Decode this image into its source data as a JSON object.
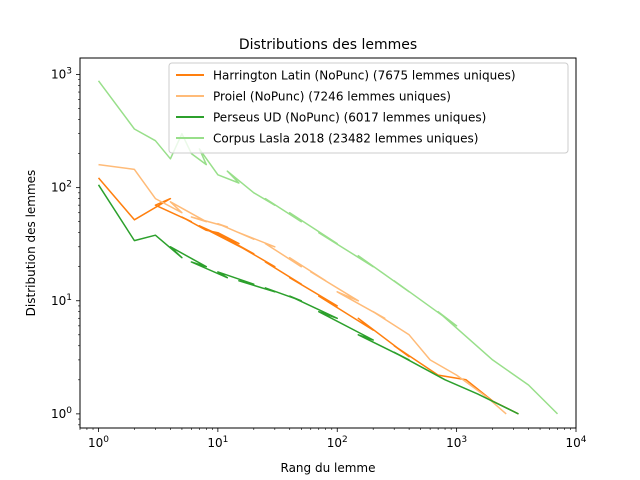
{
  "chart_data": {
    "type": "line",
    "title": "Distributions des lemmes",
    "xlabel": "Rang du lemme",
    "ylabel": "Distribution des lemmes",
    "xscale": "log",
    "yscale": "log",
    "xlim": [
      0.7,
      10000
    ],
    "ylim": [
      0.75,
      1400
    ],
    "x_ticks": [
      {
        "value": 1,
        "base": "10",
        "exp": "0"
      },
      {
        "value": 10,
        "base": "10",
        "exp": "1"
      },
      {
        "value": 100,
        "base": "10",
        "exp": "2"
      },
      {
        "value": 1000,
        "base": "10",
        "exp": "3"
      },
      {
        "value": 10000,
        "base": "10",
        "exp": "4"
      }
    ],
    "y_ticks": [
      {
        "value": 1,
        "base": "10",
        "exp": "0"
      },
      {
        "value": 10,
        "base": "10",
        "exp": "1"
      },
      {
        "value": 100,
        "base": "10",
        "exp": "2"
      },
      {
        "value": 1000,
        "base": "10",
        "exp": "3"
      }
    ],
    "grid": false,
    "legend_position": "top-right",
    "series": [
      {
        "name": "Harrington Latin (NoPunc) (7675 lemmes uniques)",
        "color": "#ff7f0e",
        "points": [
          [
            1,
            122
          ],
          [
            2,
            52
          ],
          [
            4,
            80
          ],
          [
            3,
            70
          ],
          [
            6,
            50
          ],
          [
            5,
            55
          ],
          [
            8,
            42
          ],
          [
            10,
            40
          ],
          [
            15,
            32
          ],
          [
            7,
            46
          ],
          [
            20,
            26
          ],
          [
            12,
            35
          ],
          [
            30,
            20
          ],
          [
            25,
            22
          ],
          [
            50,
            14
          ],
          [
            40,
            16
          ],
          [
            100,
            9
          ],
          [
            70,
            11
          ],
          [
            200,
            5.5
          ],
          [
            150,
            7
          ],
          [
            400,
            3.2
          ],
          [
            300,
            4
          ],
          [
            700,
            2.2
          ],
          [
            1200,
            2
          ],
          [
            2000,
            1.3
          ],
          [
            3300,
            1
          ]
        ]
      },
      {
        "name": "Proiel (NoPunc) (7246 lemmes uniques)",
        "color": "#ffbb78",
        "points": [
          [
            1,
            160
          ],
          [
            2,
            145
          ],
          [
            3,
            80
          ],
          [
            5,
            60
          ],
          [
            4,
            75
          ],
          [
            8,
            50
          ],
          [
            6,
            55
          ],
          [
            12,
            45
          ],
          [
            10,
            48
          ],
          [
            20,
            35
          ],
          [
            15,
            40
          ],
          [
            30,
            30
          ],
          [
            25,
            32
          ],
          [
            50,
            20
          ],
          [
            40,
            24
          ],
          [
            80,
            15
          ],
          [
            60,
            18
          ],
          [
            150,
            10
          ],
          [
            100,
            12
          ],
          [
            250,
            7
          ],
          [
            200,
            8
          ],
          [
            400,
            5
          ],
          [
            600,
            3
          ],
          [
            1000,
            2.2
          ],
          [
            1800,
            1.4
          ],
          [
            2600,
            1
          ]
        ]
      },
      {
        "name": "Perseus UD (NoPunc) (6017 lemmes uniques)",
        "color": "#2ca02c",
        "points": [
          [
            1,
            106
          ],
          [
            2,
            34
          ],
          [
            3,
            38
          ],
          [
            5,
            24
          ],
          [
            4,
            30
          ],
          [
            8,
            20
          ],
          [
            6,
            22
          ],
          [
            12,
            16
          ],
          [
            10,
            18
          ],
          [
            20,
            14
          ],
          [
            15,
            15
          ],
          [
            30,
            12
          ],
          [
            25,
            13
          ],
          [
            50,
            10
          ],
          [
            40,
            11
          ],
          [
            100,
            7
          ],
          [
            70,
            8
          ],
          [
            200,
            4.5
          ],
          [
            150,
            5
          ],
          [
            400,
            3
          ],
          [
            300,
            3.5
          ],
          [
            800,
            2
          ],
          [
            1500,
            1.5
          ],
          [
            3300,
            1
          ]
        ]
      },
      {
        "name": "Corpus Lasla 2018 (23482 lemmes uniques)",
        "color": "#98df8a",
        "points": [
          [
            1,
            880
          ],
          [
            2,
            330
          ],
          [
            3,
            260
          ],
          [
            4,
            180
          ],
          [
            5,
            300
          ],
          [
            6,
            200
          ],
          [
            8,
            160
          ],
          [
            7,
            220
          ],
          [
            10,
            130
          ],
          [
            15,
            110
          ],
          [
            12,
            140
          ],
          [
            20,
            90
          ],
          [
            30,
            70
          ],
          [
            25,
            80
          ],
          [
            50,
            50
          ],
          [
            40,
            60
          ],
          [
            100,
            32
          ],
          [
            70,
            40
          ],
          [
            200,
            20
          ],
          [
            150,
            25
          ],
          [
            400,
            12
          ],
          [
            300,
            15
          ],
          [
            1000,
            6
          ],
          [
            700,
            8
          ],
          [
            2000,
            3
          ],
          [
            4000,
            1.8
          ],
          [
            7000,
            1
          ]
        ]
      }
    ]
  }
}
